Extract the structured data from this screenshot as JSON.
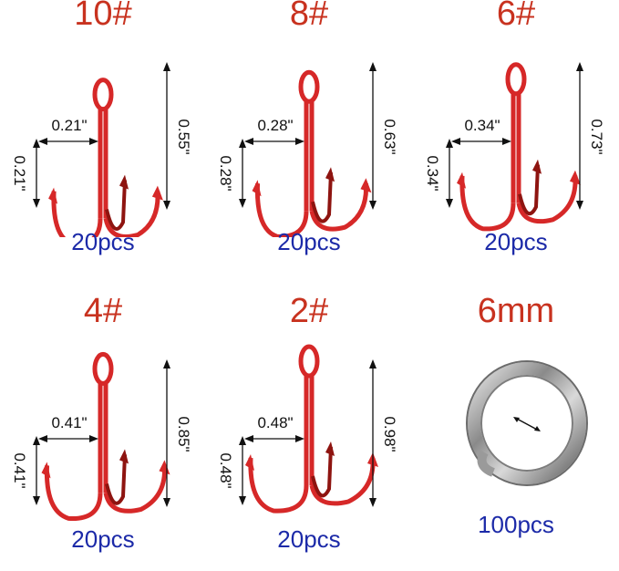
{
  "colors": {
    "hook": "#d62828",
    "hook_dark": "#8e1410",
    "size_text": "#c8321f",
    "qty_text": "#1c2aa8",
    "dimension_lines": "#111111"
  },
  "items": [
    {
      "size": "10#",
      "width": "0.21\"",
      "gap": "0.21\"",
      "length": "0.55\"",
      "quantity": "20pcs"
    },
    {
      "size": "8#",
      "width": "0.28\"",
      "gap": "0.28\"",
      "length": "0.63\"",
      "quantity": "20pcs"
    },
    {
      "size": "6#",
      "width": "0.34\"",
      "gap": "0.34\"",
      "length": "0.73\"",
      "quantity": "20pcs"
    },
    {
      "size": "4#",
      "width": "0.41\"",
      "gap": "0.41\"",
      "length": "0.85\"",
      "quantity": "20pcs"
    },
    {
      "size": "2#",
      "width": "0.48\"",
      "gap": "0.48\"",
      "length": "0.98\"",
      "quantity": "20pcs"
    }
  ],
  "ring": {
    "size": "6mm",
    "quantity": "100pcs",
    "icon": "split-ring-icon"
  }
}
